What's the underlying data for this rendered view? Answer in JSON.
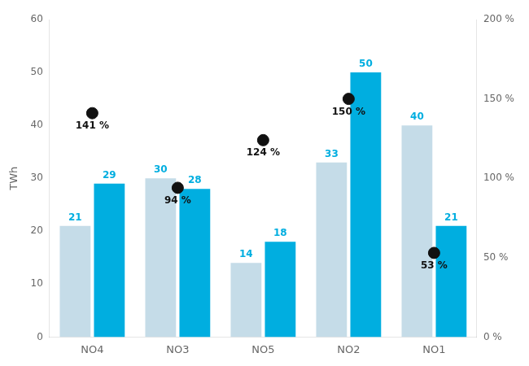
{
  "chart_data": {
    "type": "bar",
    "categories": [
      "NO4",
      "NO3",
      "NO5",
      "NO2",
      "NO1"
    ],
    "series": [
      {
        "values": [
          21,
          30,
          14,
          33,
          40
        ],
        "color": "#c5dce8"
      },
      {
        "values": [
          29,
          28,
          18,
          50,
          21
        ],
        "color": "#00aee0"
      },
      {
        "type": "scatter",
        "axis": "y2",
        "marker": "circle",
        "color": "#111111",
        "values": [
          141,
          94,
          124,
          150,
          53
        ],
        "value_labels": [
          "141 %",
          "94 %",
          "124 %",
          "150 %",
          "53 %"
        ]
      }
    ],
    "ylabel": "TWh",
    "ylim": [
      0,
      60
    ],
    "yticks": [
      0,
      10,
      20,
      30,
      40,
      50,
      60
    ],
    "y2lim": [
      0,
      200
    ],
    "y2ticks": [
      {
        "value": 0,
        "label": "0 %"
      },
      {
        "value": 50,
        "label": "50 %"
      },
      {
        "value": 100,
        "label": "100 %"
      },
      {
        "value": 150,
        "label": "150 %"
      },
      {
        "value": 200,
        "label": "200 %"
      }
    ],
    "data_labels": true,
    "grid": false
  }
}
